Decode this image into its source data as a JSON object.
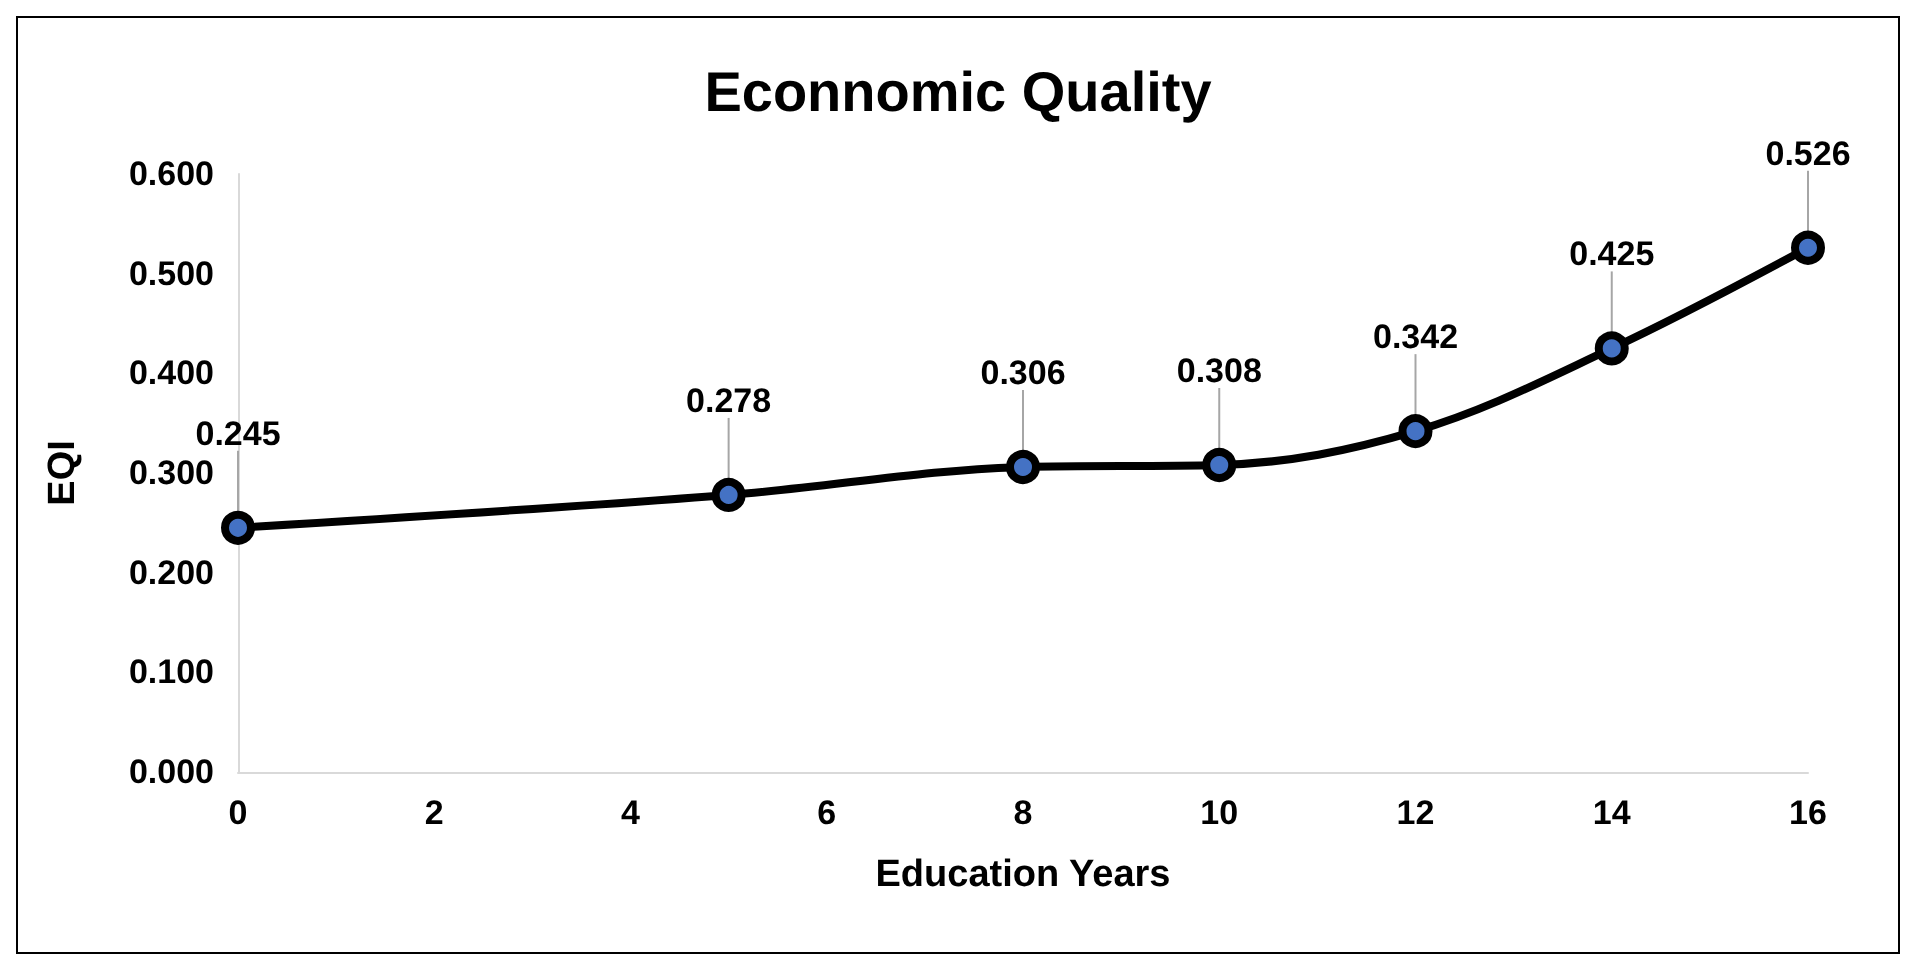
{
  "chart_data": {
    "type": "line",
    "title": "Econnomic Quality",
    "xlabel": "Education Years",
    "ylabel": "EQI",
    "x": [
      0,
      5,
      8,
      10,
      12,
      14,
      16
    ],
    "series": [
      {
        "color": "#000000",
        "values": [
          0.245,
          0.278,
          0.306,
          0.308,
          0.342,
          0.425,
          0.526
        ]
      }
    ],
    "xlim": [
      0,
      16
    ],
    "xticks": [
      0,
      2,
      4,
      6,
      8,
      10,
      12,
      14,
      16
    ],
    "ylim": [
      0,
      0.6
    ],
    "yticks": [
      {
        "value": 0,
        "label": "0.000"
      },
      {
        "value": 0.1,
        "label": "0.100"
      },
      {
        "value": 0.2,
        "label": "0.200"
      },
      {
        "value": 0.3,
        "label": "0.300"
      },
      {
        "value": 0.4,
        "label": "0.400"
      },
      {
        "value": 0.5,
        "label": "0.500"
      },
      {
        "value": 0.6,
        "label": "0.600"
      }
    ],
    "data_labels": true,
    "marker": "circle",
    "line_style": "solid"
  }
}
